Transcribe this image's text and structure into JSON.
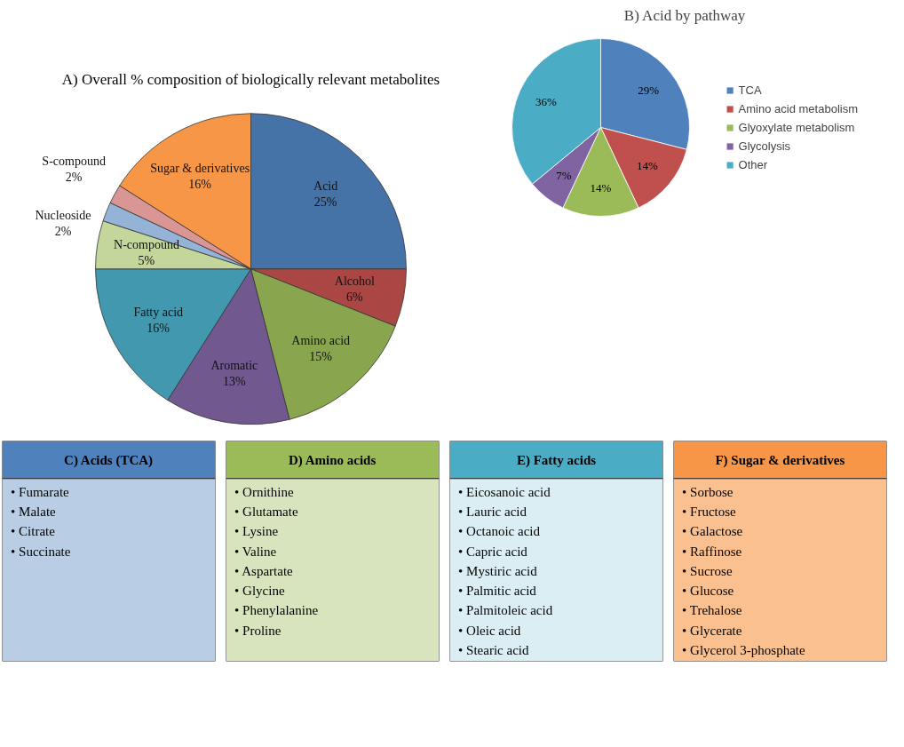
{
  "chart_data": [
    {
      "type": "pie",
      "title": "A) Overall % composition of biologically relevant metabolites",
      "categories": [
        "Acid",
        "Alcohol",
        "Amino acid",
        "Aromatic",
        "Fatty acid",
        "N-compound",
        "Nucleoside",
        "S-compound",
        "Sugar & derivatives"
      ],
      "values": [
        25,
        6,
        15,
        13,
        16,
        5,
        2,
        2,
        16
      ],
      "value_labels": [
        "25%",
        "6%",
        "15%",
        "13%",
        "16%",
        "5%",
        "2%",
        "2%",
        "16%"
      ],
      "colors": [
        "#4572a7",
        "#aa4643",
        "#89a54e",
        "#71588f",
        "#4198af",
        "#c3d69b",
        "#95b3d7",
        "#d99694",
        "#f79646"
      ]
    },
    {
      "type": "pie",
      "title": "B) Acid by pathway",
      "categories": [
        "TCA",
        "Amino acid metabolism",
        "Glyoxylate metabolism",
        "Glycolysis",
        "Other"
      ],
      "values": [
        29,
        14,
        14,
        7,
        36
      ],
      "value_labels": [
        "29%",
        "14%",
        "14%",
        "7%",
        "36%"
      ],
      "colors": [
        "#4f81bd",
        "#c0504d",
        "#9bbb59",
        "#8064a2",
        "#4bacc6"
      ],
      "legend": "right"
    },
    {
      "type": "other",
      "title": "C) Acids (TCA)",
      "annotations": [
        "• Fumarate",
        "• Malate",
        "• Citrate",
        "• Succinate"
      ],
      "colors": [
        "#4f81bd",
        "#b9cde5"
      ]
    },
    {
      "type": "other",
      "title": "D) Amino acids",
      "annotations": [
        "• Ornithine",
        "• Glutamate",
        "• Lysine",
        "• Valine",
        "• Aspartate",
        "• Glycine",
        "• Phenylalanine",
        "• Proline"
      ],
      "colors": [
        "#9bbb59",
        "#d7e4bd"
      ]
    },
    {
      "type": "other",
      "title": "E) Fatty acids",
      "annotations": [
        "• Eicosanoic acid",
        "• Lauric acid",
        "• Octanoic acid",
        "• Capric acid",
        "• Mystiric acid",
        "• Palmitic acid",
        "• Palmitoleic acid",
        "• Oleic acid",
        "• Stearic acid"
      ],
      "colors": [
        "#4bacc6",
        "#dbeef4"
      ]
    },
    {
      "type": "other",
      "title": "F) Sugar & derivatives",
      "annotations": [
        "• Sorbose",
        "• Fructose",
        "• Galactose",
        "• Raffinose",
        "• Sucrose",
        "• Glucose",
        "• Trehalose",
        "• Glycerate",
        "• Glycerol 3-phosphate"
      ],
      "colors": [
        "#f79646",
        "#fac090"
      ]
    }
  ]
}
